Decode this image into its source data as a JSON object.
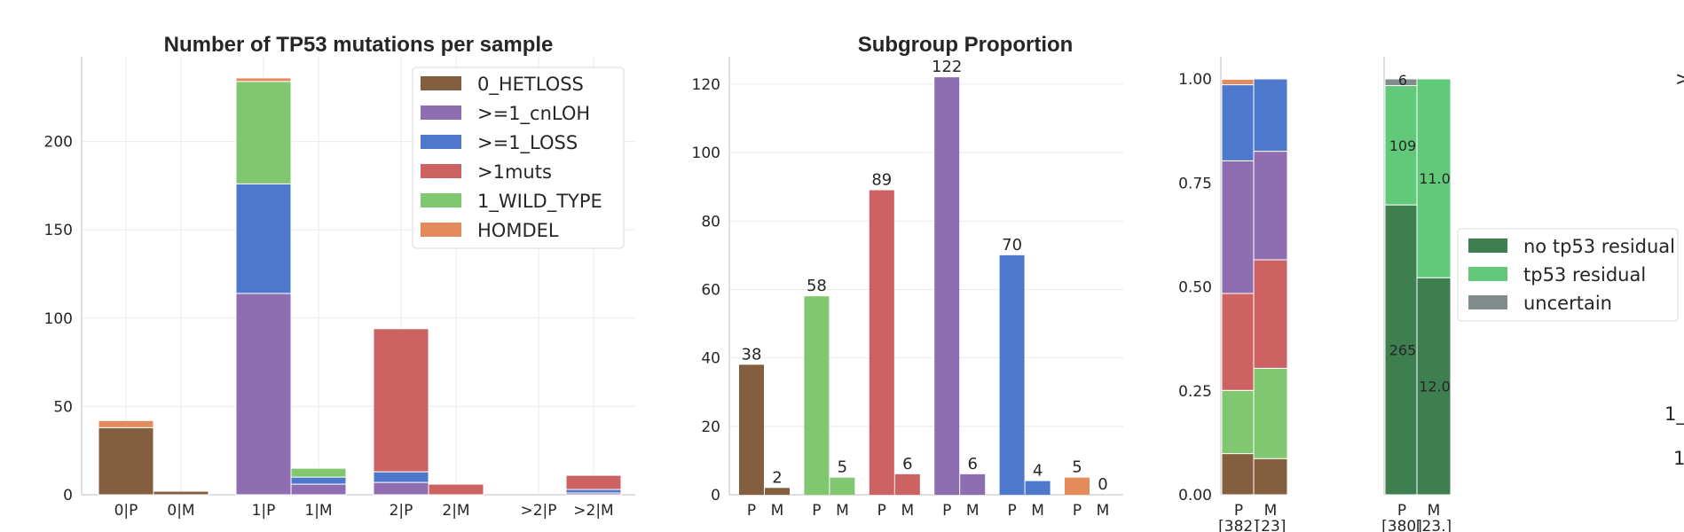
{
  "colors": {
    "0_HETLOSS": "#845f3f",
    ">=1_cnLOH": "#8e6db0",
    ">=1_LOSS": "#4e78cc",
    ">1muts": "#cc6262",
    "1_WILD_TYPE": "#80c870",
    "HOMDEL": "#e38b5a",
    "no tp53 residual": "#3d7f4f",
    "tp53 residual": "#62c97a",
    "uncertain": "#838c8c"
  },
  "chart_data": [
    {
      "type": "bar",
      "stacked": true,
      "title": "Number of TP53 mutations per sample",
      "categories": [
        "0|P",
        "0|M",
        "1|P",
        "1|M",
        "2|P",
        "2|M",
        ">2|P",
        ">2|M"
      ],
      "series": [
        {
          "name": "0_HETLOSS",
          "values": [
            38,
            2,
            0,
            0,
            0,
            0,
            0,
            0
          ]
        },
        {
          "name": ">=1_cnLOH",
          "values": [
            0,
            0,
            114,
            6,
            7,
            0,
            0,
            1
          ]
        },
        {
          "name": ">=1_LOSS",
          "values": [
            0,
            0,
            62,
            4,
            6,
            0,
            0,
            2
          ]
        },
        {
          "name": ">1muts",
          "values": [
            0,
            0,
            0,
            0,
            81,
            6,
            0,
            8
          ]
        },
        {
          "name": "1_WILD_TYPE",
          "values": [
            0,
            0,
            58,
            5,
            0,
            0,
            0,
            0
          ]
        },
        {
          "name": "HOMDEL",
          "values": [
            4,
            0,
            2,
            0,
            0,
            0,
            0,
            0
          ]
        }
      ],
      "ylim": [
        0,
        248
      ],
      "yticks": [
        0,
        50,
        100,
        150,
        200
      ],
      "grid": true,
      "legend": "top-right"
    },
    {
      "type": "bar",
      "title": "Subgroup Proportion",
      "groups": [
        "0_HETLOSS",
        "1_WILD_TYPE",
        ">1muts",
        ">=1_cnLOH",
        ">=1_LOSS",
        "HOMDEL"
      ],
      "categories": [
        "P",
        "M"
      ],
      "values": [
        [
          38,
          2
        ],
        [
          58,
          5
        ],
        [
          89,
          6
        ],
        [
          122,
          6
        ],
        [
          70,
          4
        ],
        [
          5,
          0
        ]
      ],
      "ylim": [
        0,
        128
      ],
      "yticks": [
        0,
        20,
        40,
        60,
        80,
        100,
        120
      ],
      "grid": true
    },
    {
      "type": "bar",
      "stacked": true,
      "normalized": true,
      "categories": [
        "P",
        "M"
      ],
      "counts": [
        "[382]",
        "[23]"
      ],
      "series": [
        {
          "name": "0_HETLOSS",
          "values": [
            0.099,
            0.087
          ]
        },
        {
          "name": "1_WILD_TYPE",
          "values": [
            0.152,
            0.217
          ]
        },
        {
          "name": ">1muts",
          "values": [
            0.233,
            0.261
          ]
        },
        {
          "name": ">=1_cnLOH",
          "values": [
            0.319,
            0.261
          ]
        },
        {
          "name": ">=1_LOSS",
          "values": [
            0.183,
            0.174
          ]
        },
        {
          "name": "HOMDEL",
          "values": [
            0.013,
            0.0
          ]
        }
      ],
      "ylim": [
        0,
        1
      ],
      "yticks": [
        "0.00",
        "0.25",
        "0.50",
        "0.75",
        "1.00"
      ]
    },
    {
      "type": "bar",
      "stacked": true,
      "normalized": true,
      "categories": [
        "P",
        "M"
      ],
      "counts": [
        "[380]",
        "[23.]"
      ],
      "series": [
        {
          "name": "no tp53 residual",
          "values": [
            0.697,
            0.522
          ],
          "labels": [
            "265",
            "12.0"
          ]
        },
        {
          "name": "tp53 residual",
          "values": [
            0.287,
            0.478
          ],
          "labels": [
            "109",
            "11.0"
          ]
        },
        {
          "name": "uncertain",
          "values": [
            0.016,
            0.0
          ],
          "labels": [
            "6",
            ""
          ]
        }
      ],
      "ylim": [
        0,
        1
      ],
      "legend": "right"
    }
  ],
  "cut_off_text": {
    "right_top": ">",
    "right_mid1": "1_",
    "right_mid2": "1"
  }
}
